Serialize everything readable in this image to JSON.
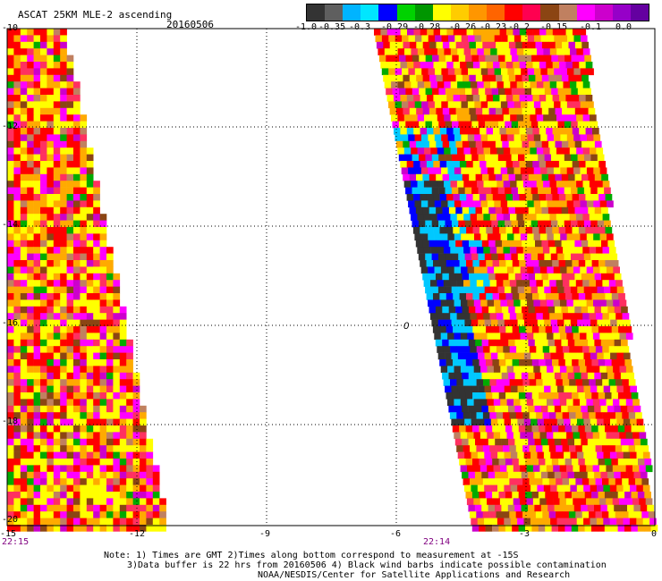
{
  "title": "ASCAT 25KM MLE-2 ascending",
  "date": "20160506",
  "colorbar": {
    "colors": [
      "#333333",
      "#5f5f5f",
      "#00b4ff",
      "#00e6ff",
      "#0000ff",
      "#00d200",
      "#009600",
      "#ffff00",
      "#ffcc00",
      "#ff9600",
      "#ff6400",
      "#ff0000",
      "#ff0050",
      "#8b4513",
      "#c08060",
      "#ff00ff",
      "#cc00cc",
      "#9600c8",
      "#6400a0"
    ],
    "labels": [
      "-1.0",
      "-0.35",
      "-0.3",
      "-0.29",
      "-0.28",
      "-0.26",
      "-0.23",
      "-0.2",
      "-0.15",
      "-0.1",
      "0.0"
    ]
  },
  "axes": {
    "y_labels": [
      "-10",
      "-12",
      "-14",
      "-16",
      "-18",
      "-20"
    ],
    "x_labels": [
      "-15",
      "-12",
      "-9",
      "-6",
      "-3",
      "0"
    ]
  },
  "times": [
    "22:15",
    "22:14"
  ],
  "barb_symbol": "0",
  "notes": [
    "Note: 1) Times are GMT 2)Times along bottom correspond to measurement at -15S",
    "3)Data buffer is 22 hrs from 20160506 4) Black wind barbs indicate possible contamination",
    "NOAA/NESDIS/Center for Satellite Applications and Research"
  ],
  "palette": {
    "dark": "#333333",
    "cyan": "#00c8ff",
    "blue": "#0000ff",
    "green": "#00aa00",
    "yellow": "#ffff00",
    "orange": "#ffaa00",
    "red": "#ff0000",
    "brown": "#8b4513",
    "magenta": "#ff00ff",
    "purple": "#cc00cc"
  }
}
